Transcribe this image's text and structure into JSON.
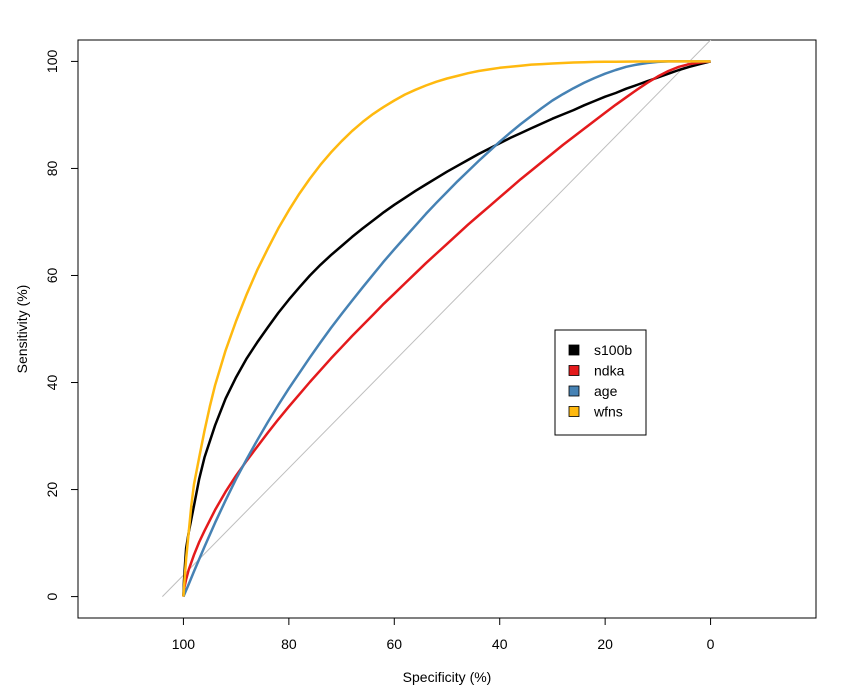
{
  "chart_data": {
    "type": "line",
    "title": "",
    "xlabel": "Specificity (%)",
    "ylabel": "Sensitivity (%)",
    "xlim": [
      120,
      -20
    ],
    "ylim": [
      -4,
      104
    ],
    "x_ticks": [
      100,
      80,
      60,
      40,
      20,
      0
    ],
    "y_ticks": [
      0,
      20,
      40,
      60,
      80,
      100
    ],
    "reference_line": {
      "name": "chance diagonal",
      "color": "#bebebe",
      "from": [
        104,
        0
      ],
      "to": [
        -4,
        108
      ]
    },
    "series": [
      {
        "name": "s100b",
        "color": "#000000",
        "x": [
          100,
          99.9,
          99.7,
          99.5,
          99,
          98,
          97,
          96,
          94,
          92,
          90,
          88,
          86,
          84,
          82,
          80,
          78,
          76,
          74,
          72,
          70,
          68,
          66,
          64,
          62,
          60,
          58,
          56,
          54,
          52,
          50,
          48,
          46,
          44,
          42,
          40,
          38,
          36,
          34,
          32,
          30,
          28,
          26,
          24,
          22,
          20,
          18,
          16,
          14,
          12,
          10,
          8,
          6,
          4,
          2,
          0
        ],
        "y": [
          0,
          3,
          6,
          9,
          12,
          17,
          22,
          26,
          32,
          37,
          41,
          44.5,
          47.5,
          50.3,
          53,
          55.5,
          57.8,
          60,
          62,
          63.8,
          65.5,
          67.2,
          68.8,
          70.3,
          71.8,
          73.2,
          74.5,
          75.8,
          77,
          78.2,
          79.4,
          80.5,
          81.6,
          82.7,
          83.7,
          84.7,
          85.7,
          86.6,
          87.5,
          88.4,
          89.3,
          90.1,
          90.9,
          91.8,
          92.6,
          93.4,
          94.1,
          94.9,
          95.6,
          96.3,
          97,
          97.7,
          98.4,
          99,
          99.5,
          100
        ]
      },
      {
        "name": "ndka",
        "color": "#e41a1c",
        "x": [
          100,
          99.8,
          99.5,
          99,
          98,
          97,
          96,
          94,
          92,
          90,
          88,
          86,
          84,
          82,
          80,
          78,
          76,
          74,
          72,
          70,
          68,
          66,
          64,
          62,
          60,
          58,
          56,
          54,
          52,
          50,
          48,
          46,
          44,
          42,
          40,
          38,
          36,
          34,
          32,
          30,
          28,
          26,
          24,
          22,
          20,
          18,
          16,
          14,
          12,
          10,
          8,
          6,
          4,
          2,
          0
        ],
        "y": [
          0,
          1.8,
          3.2,
          5,
          7.8,
          10.2,
          12.3,
          16.2,
          19.6,
          22.6,
          25.4,
          28,
          30.6,
          33.1,
          35.5,
          37.8,
          40.1,
          42.3,
          44.5,
          46.6,
          48.7,
          50.7,
          52.7,
          54.7,
          56.6,
          58.5,
          60.4,
          62.3,
          64.1,
          65.9,
          67.7,
          69.5,
          71.2,
          72.9,
          74.6,
          76.3,
          78,
          79.6,
          81.2,
          82.8,
          84.4,
          85.9,
          87.4,
          88.9,
          90.4,
          91.9,
          93.3,
          94.7,
          96,
          97.2,
          98.2,
          99,
          99.5,
          99.8,
          100
        ]
      },
      {
        "name": "age",
        "color": "#4682b4",
        "x": [
          100,
          99,
          98,
          97,
          96,
          94,
          92,
          90,
          88,
          86,
          84,
          82,
          80,
          78,
          76,
          74,
          72,
          70,
          68,
          66,
          64,
          62,
          60,
          58,
          56,
          54,
          52,
          50,
          48,
          46,
          44,
          42,
          40,
          38,
          36,
          34,
          32,
          30,
          28,
          26,
          24,
          22,
          20,
          18,
          16,
          14,
          12,
          10,
          8,
          6,
          4,
          2,
          0
        ],
        "y": [
          0,
          2.3,
          4.7,
          7,
          9.3,
          13.8,
          18,
          22,
          25.7,
          29.2,
          32.6,
          35.8,
          38.9,
          41.8,
          44.7,
          47.5,
          50.2,
          52.8,
          55.3,
          57.8,
          60.2,
          62.6,
          64.9,
          67.1,
          69.3,
          71.5,
          73.6,
          75.6,
          77.6,
          79.5,
          81.4,
          83.2,
          85,
          86.7,
          88.3,
          89.8,
          91.3,
          92.7,
          93.9,
          95,
          96,
          96.9,
          97.7,
          98.4,
          99,
          99.4,
          99.7,
          99.9,
          100,
          100,
          100,
          100,
          100
        ]
      },
      {
        "name": "wfns",
        "color": "#ffb90f",
        "x": [
          100,
          99.8,
          99.5,
          99,
          98.5,
          98,
          97,
          96,
          95,
          94,
          92,
          90,
          88,
          86,
          84,
          82,
          80,
          78,
          76,
          74,
          72,
          70,
          68,
          66,
          64,
          62,
          60,
          58,
          56,
          54,
          52,
          50,
          48,
          46,
          44,
          42,
          40,
          38,
          36,
          34,
          32,
          30,
          28,
          26,
          24,
          22,
          20,
          18,
          16,
          14,
          12,
          10,
          8,
          6,
          4,
          2,
          0
        ],
        "y": [
          0,
          3,
          7,
          12,
          17,
          21,
          26,
          31,
          35.5,
          39.5,
          46,
          51.5,
          56.5,
          61,
          65,
          68.8,
          72.2,
          75.3,
          78.1,
          80.7,
          83,
          85.1,
          87,
          88.7,
          90.2,
          91.5,
          92.7,
          93.8,
          94.7,
          95.5,
          96.2,
          96.8,
          97.3,
          97.8,
          98.2,
          98.5,
          98.8,
          99,
          99.2,
          99.4,
          99.5,
          99.6,
          99.7,
          99.8,
          99.85,
          99.9,
          99.93,
          99.95,
          99.97,
          99.98,
          99.99,
          100,
          100,
          100,
          100,
          100,
          100
        ]
      }
    ],
    "legend": {
      "position": "center-right",
      "entries": [
        {
          "label": "s100b",
          "color": "#000000"
        },
        {
          "label": "ndka",
          "color": "#e41a1c"
        },
        {
          "label": "age",
          "color": "#4682b4"
        },
        {
          "label": "wfns",
          "color": "#ffb90f"
        }
      ]
    }
  }
}
